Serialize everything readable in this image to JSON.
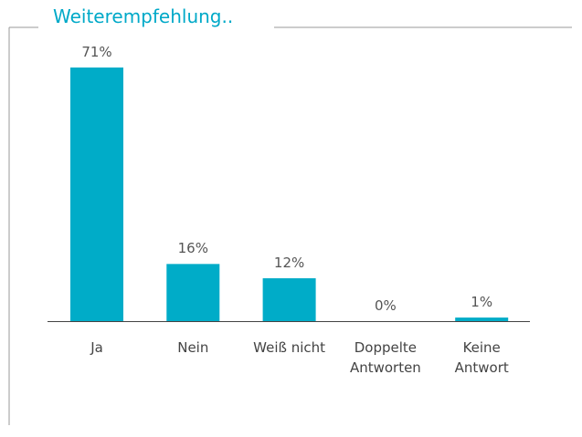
{
  "chart_data": {
    "type": "bar",
    "title": "Weiterempfehlung..",
    "categories": [
      "Ja",
      "Nein",
      "Weiß nicht",
      "Doppelte Antworten",
      "Keine Antwort"
    ],
    "values": [
      71,
      16,
      12,
      0,
      1
    ],
    "value_labels": [
      "71%",
      "16%",
      "12%",
      "0%",
      "1%"
    ],
    "color": "#00acc8"
  }
}
